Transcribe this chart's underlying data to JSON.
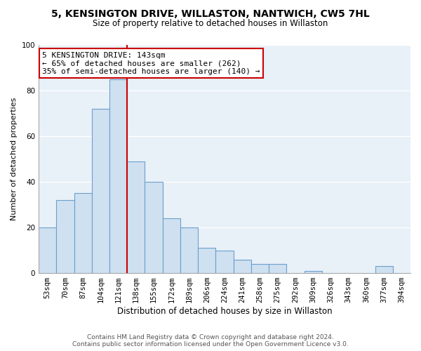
{
  "title": "5, KENSINGTON DRIVE, WILLASTON, NANTWICH, CW5 7HL",
  "subtitle": "Size of property relative to detached houses in Willaston",
  "xlabel": "Distribution of detached houses by size in Willaston",
  "ylabel": "Number of detached properties",
  "bar_labels": [
    "53sqm",
    "70sqm",
    "87sqm",
    "104sqm",
    "121sqm",
    "138sqm",
    "155sqm",
    "172sqm",
    "189sqm",
    "206sqm",
    "224sqm",
    "241sqm",
    "258sqm",
    "275sqm",
    "292sqm",
    "309sqm",
    "326sqm",
    "343sqm",
    "360sqm",
    "377sqm",
    "394sqm"
  ],
  "bar_values": [
    20,
    32,
    35,
    72,
    85,
    49,
    40,
    24,
    20,
    11,
    10,
    6,
    4,
    4,
    0,
    1,
    0,
    0,
    0,
    3,
    0
  ],
  "bar_color": "#cfe0f0",
  "bar_edge_color": "#6aa0cd",
  "vline_x": 4.5,
  "ylim": [
    0,
    100
  ],
  "yticks": [
    0,
    20,
    40,
    60,
    80,
    100
  ],
  "annotation_title": "5 KENSINGTON DRIVE: 143sqm",
  "annotation_line1": "← 65% of detached houses are smaller (262)",
  "annotation_line2": "35% of semi-detached houses are larger (140) →",
  "vline_color": "#cc0000",
  "footer_line1": "Contains HM Land Registry data © Crown copyright and database right 2024.",
  "footer_line2": "Contains public sector information licensed under the Open Government Licence v3.0.",
  "bg_color": "#ffffff",
  "plot_bg_color": "#e8f0f8",
  "grid_color": "#ffffff",
  "title_fontsize": 10,
  "subtitle_fontsize": 8.5,
  "ylabel_fontsize": 8,
  "xlabel_fontsize": 8.5,
  "tick_fontsize": 7.5,
  "annot_fontsize": 8,
  "footer_fontsize": 6.5
}
